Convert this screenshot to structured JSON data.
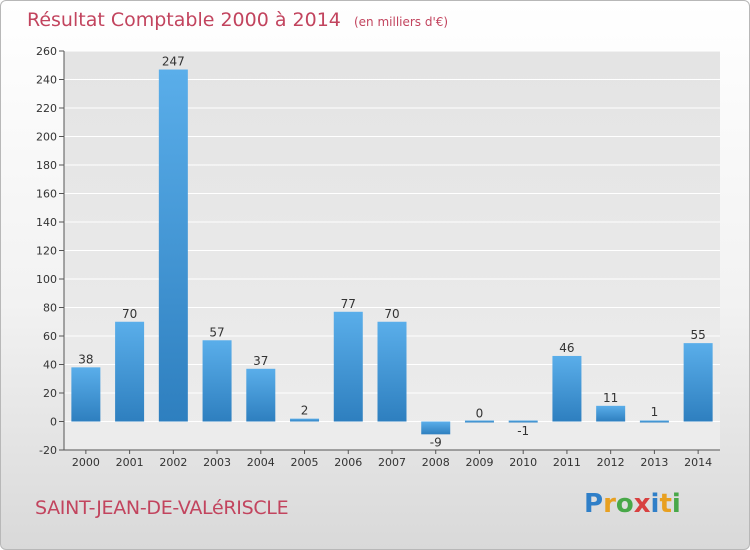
{
  "colors": {
    "title": "#c2445e",
    "bar_light": "#5aaeea",
    "bar_dark": "#2e7fbf",
    "grid": "#ffffff"
  },
  "header": {
    "title": "Résultat Comptable 2000 à 2014",
    "unit": "(en milliers d'€)"
  },
  "footer": {
    "commune": "SAINT-JEAN-DE-VALéRISCLE",
    "logo_letters": [
      "P",
      "r",
      "o",
      "x",
      "i",
      "t",
      "i"
    ]
  },
  "chart_data": {
    "type": "bar",
    "categories": [
      "2000",
      "2001",
      "2002",
      "2003",
      "2004",
      "2005",
      "2006",
      "2007",
      "2008",
      "2009",
      "2010",
      "2011",
      "2012",
      "2013",
      "2014"
    ],
    "values": [
      38,
      70,
      247,
      57,
      37,
      2,
      77,
      70,
      -9,
      0,
      -1,
      46,
      11,
      1,
      55
    ],
    "ylim": [
      -20,
      260
    ],
    "yticks": [
      -20,
      0,
      20,
      40,
      60,
      80,
      100,
      120,
      140,
      160,
      180,
      200,
      220,
      240,
      260
    ],
    "grid": true,
    "legend": "none"
  }
}
